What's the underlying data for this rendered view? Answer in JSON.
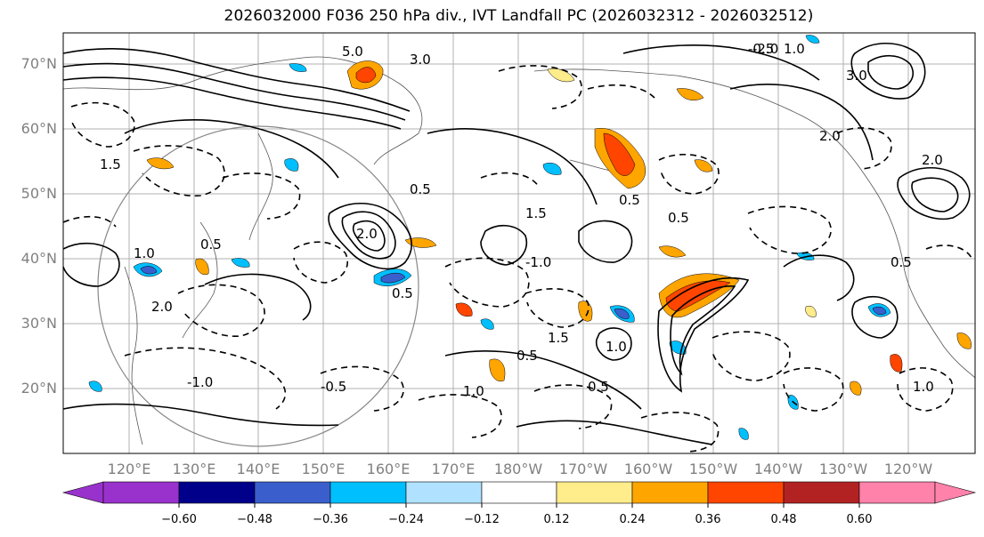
{
  "title": "2026032000 F036 250 hPa div., IVT Landfall PC (2026032312 - 2026032512)",
  "map": {
    "lat_labels": [
      "70°N",
      "60°N",
      "50°N",
      "40°N",
      "30°N",
      "20°N"
    ],
    "lon_labels": [
      "120°E",
      "130°E",
      "140°E",
      "150°E",
      "160°E",
      "170°E",
      "180°W",
      "170°W",
      "160°W",
      "150°W",
      "140°W",
      "130°W",
      "120°W"
    ],
    "contour_labels": [
      "5.0",
      "3.0",
      "2.0",
      "1.5",
      "1.0",
      "0.5",
      "-0.5",
      "-1.0",
      "2.0",
      "0.5",
      "1.0",
      "0.5",
      "1.5",
      "0.5",
      "1.0",
      "2.0",
      "0.5",
      "-1.0",
      "0.5",
      "1.0",
      "-0.5",
      "0.5",
      "2.0",
      "3.0",
      "-2.0",
      "0.5",
      "1.5",
      "1.0"
    ],
    "overlay": "250 hPa divergence contours and IVT landfall principal component shading"
  },
  "colorbar": {
    "ticks": [
      "−0.60",
      "−0.48",
      "−0.36",
      "−0.24",
      "−0.12",
      "0.12",
      "0.24",
      "0.36",
      "0.48",
      "0.60"
    ],
    "colors": [
      "#9932cc",
      "#00008b",
      "#3a5fcd",
      "#00bfff",
      "#b0e2ff",
      "#ffffff",
      "#ffec8b",
      "#ffa500",
      "#ff4500",
      "#b22222",
      "#ff82ab"
    ]
  }
}
